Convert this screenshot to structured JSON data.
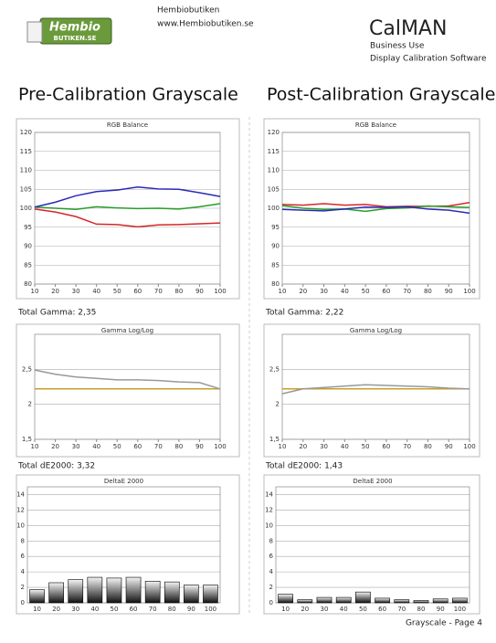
{
  "header": {
    "logo_top": "Hembio",
    "logo_bottom": "BUTIKEN.SE",
    "company": "Hembiobutiken",
    "url": "www.Hembiobutiken.se",
    "product": "CalMAN",
    "edition": "Business Use",
    "description": "Display Calibration Software"
  },
  "sections": [
    {
      "title": "Pre-Calibration Grayscale",
      "gamma_total": "Total Gamma: 2,35",
      "de_total": "Total dE2000: 3,32"
    },
    {
      "title": "Post-Calibration Grayscale",
      "gamma_total": "Total Gamma: 2,22",
      "de_total": "Total dE2000: 1,43"
    }
  ],
  "chart_data": [
    {
      "type": "line",
      "title": "RGB Balance",
      "x": [
        10,
        20,
        30,
        40,
        50,
        60,
        70,
        80,
        90,
        100
      ],
      "xlim": [
        10,
        100
      ],
      "xticks": [
        10,
        20,
        30,
        40,
        50,
        60,
        70,
        80,
        90,
        100
      ],
      "ylim": [
        80,
        120
      ],
      "yticks": [
        80,
        85,
        90,
        95,
        100,
        105,
        110,
        115,
        120
      ],
      "grid": true,
      "series": [
        {
          "color": "#d62728",
          "values": [
            99.8,
            99,
            97.8,
            95.8,
            95.7,
            95.1,
            95.6,
            95.7,
            95.9,
            96.1
          ]
        },
        {
          "color": "#2a9d2a",
          "values": [
            100.3,
            100,
            99.7,
            100.4,
            100.1,
            99.9,
            100,
            99.8,
            100.4,
            101.2
          ]
        },
        {
          "color": "#2a2ab8",
          "values": [
            100.3,
            101.6,
            103.3,
            104.4,
            104.8,
            105.6,
            105.1,
            105,
            104.1,
            103.1
          ]
        }
      ]
    },
    {
      "type": "line",
      "title": "RGB Balance",
      "x": [
        10,
        20,
        30,
        40,
        50,
        60,
        70,
        80,
        90,
        100
      ],
      "xlim": [
        10,
        100
      ],
      "xticks": [
        10,
        20,
        30,
        40,
        50,
        60,
        70,
        80,
        90,
        100
      ],
      "ylim": [
        80,
        120
      ],
      "yticks": [
        80,
        85,
        90,
        95,
        100,
        105,
        110,
        115,
        120
      ],
      "grid": true,
      "series": [
        {
          "color": "#d62728",
          "values": [
            101,
            100.8,
            101.2,
            100.8,
            101,
            100.4,
            100.5,
            100.5,
            100.6,
            101.5
          ]
        },
        {
          "color": "#2a9d2a",
          "values": [
            100.7,
            100,
            99.7,
            99.8,
            99.2,
            99.9,
            100.1,
            100.6,
            100.4,
            100.2
          ]
        },
        {
          "color": "#2a2ab8",
          "values": [
            99.7,
            99.5,
            99.3,
            99.8,
            100.3,
            100.2,
            100.4,
            99.8,
            99.5,
            98.7
          ]
        }
      ]
    },
    {
      "type": "line",
      "title": "Gamma Log/Log",
      "x": [
        10,
        20,
        30,
        40,
        50,
        60,
        70,
        80,
        90,
        100
      ],
      "xlim": [
        10,
        100
      ],
      "xticks": [
        10,
        20,
        30,
        40,
        50,
        60,
        70,
        80,
        90,
        100
      ],
      "ylim": [
        1.5,
        3
      ],
      "yticks": [
        {
          "value": 1.5,
          "label": "1,5"
        },
        2,
        {
          "value": 2.5,
          "label": "2,5"
        }
      ],
      "grid": true,
      "series": [
        {
          "color": "#c8a02a",
          "values": [
            2.22,
            2.22,
            2.22,
            2.22,
            2.22,
            2.22,
            2.22,
            2.22,
            2.22,
            2.22
          ]
        },
        {
          "color": "#999999",
          "values": [
            2.49,
            2.43,
            2.39,
            2.37,
            2.35,
            2.35,
            2.34,
            2.32,
            2.31,
            2.22
          ]
        }
      ]
    },
    {
      "type": "line",
      "title": "Gamma Log/Log",
      "x": [
        10,
        20,
        30,
        40,
        50,
        60,
        70,
        80,
        90,
        100
      ],
      "xlim": [
        10,
        100
      ],
      "xticks": [
        10,
        20,
        30,
        40,
        50,
        60,
        70,
        80,
        90,
        100
      ],
      "ylim": [
        1.5,
        3
      ],
      "yticks": [
        {
          "value": 1.5,
          "label": "1,5"
        },
        2,
        {
          "value": 2.5,
          "label": "2,5"
        }
      ],
      "grid": true,
      "series": [
        {
          "color": "#c8a02a",
          "values": [
            2.22,
            2.22,
            2.22,
            2.22,
            2.22,
            2.22,
            2.22,
            2.22,
            2.22,
            2.22
          ]
        },
        {
          "color": "#999999",
          "values": [
            2.15,
            2.22,
            2.24,
            2.26,
            2.28,
            2.27,
            2.26,
            2.25,
            2.23,
            2.22
          ]
        }
      ]
    },
    {
      "type": "bar",
      "title": "DeltaE 2000",
      "categories": [
        "10",
        "20",
        "30",
        "40",
        "50",
        "60",
        "70",
        "80",
        "90",
        "100"
      ],
      "values": [
        1.7,
        2.6,
        3.0,
        3.3,
        3.2,
        3.3,
        2.8,
        2.7,
        2.3,
        2.3
      ],
      "ylim": [
        0,
        15
      ],
      "yticks": [
        0,
        2,
        4,
        6,
        8,
        10,
        12,
        14
      ],
      "grid": true
    },
    {
      "type": "bar",
      "title": "DeltaE 2000",
      "categories": [
        "10",
        "20",
        "30",
        "40",
        "50",
        "60",
        "70",
        "80",
        "90",
        "100"
      ],
      "values": [
        1.1,
        0.4,
        0.7,
        0.7,
        1.4,
        0.6,
        0.4,
        0.3,
        0.5,
        0.6
      ],
      "ylim": [
        0,
        15
      ],
      "yticks": [
        0,
        2,
        4,
        6,
        8,
        10,
        12,
        14
      ],
      "grid": true
    }
  ],
  "footer": "Grayscale - Page 4"
}
